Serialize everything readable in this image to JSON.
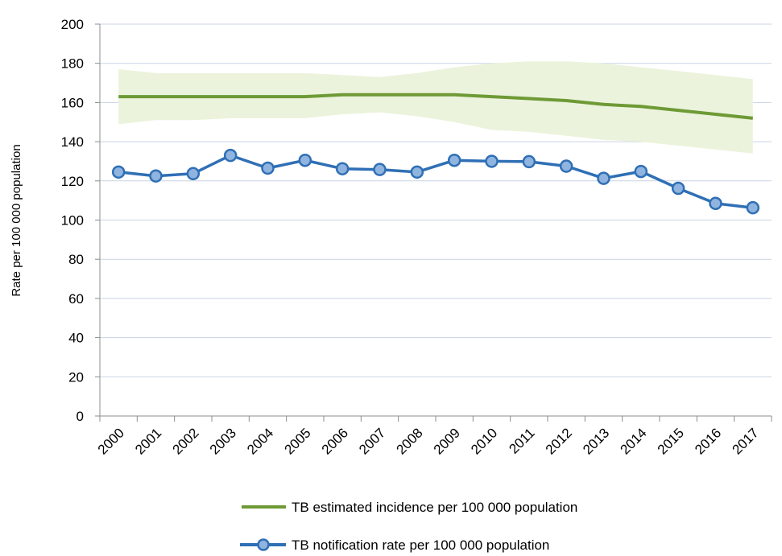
{
  "chart_data": {
    "type": "line",
    "categories": [
      "2000",
      "2001",
      "2002",
      "2003",
      "2004",
      "2005",
      "2006",
      "2007",
      "2008",
      "2009",
      "2010",
      "2011",
      "2012",
      "2013",
      "2014",
      "2015",
      "2016",
      "2017"
    ],
    "ylabel": "Rate per 100 000 population",
    "ylim": [
      0,
      200
    ],
    "yticks": [
      0,
      20,
      40,
      60,
      80,
      100,
      120,
      140,
      160,
      180,
      200
    ],
    "grid": true,
    "legend_position": "bottom",
    "series": [
      {
        "name": "TB estimated incidence per 100 000 population",
        "type": "line",
        "color": "#6e9a35",
        "values": [
          163,
          163,
          163,
          163,
          163,
          163,
          164,
          164,
          164,
          164,
          163,
          162,
          161,
          159,
          158,
          156,
          154,
          152
        ],
        "band_upper": [
          177,
          175,
          175,
          175,
          175,
          175,
          174,
          173,
          175,
          178,
          180,
          181,
          181,
          180,
          178,
          176,
          174,
          172
        ],
        "band_lower": [
          149,
          151,
          151,
          152,
          152,
          152,
          154,
          155,
          153,
          150,
          146,
          145,
          143,
          141,
          140,
          138,
          136,
          134
        ],
        "band_color": "#ebf3dc"
      },
      {
        "name": "TB notification rate per 100 000 population",
        "type": "line-markers",
        "color": "#2f6fb5",
        "marker_color": "#8fb4df",
        "values": [
          124.5,
          122.5,
          123.7,
          133,
          126.5,
          130.5,
          126.2,
          125.8,
          124.5,
          130.5,
          130,
          129.8,
          127.5,
          121.3,
          124.8,
          116.2,
          108.5,
          106.3
        ]
      }
    ]
  }
}
